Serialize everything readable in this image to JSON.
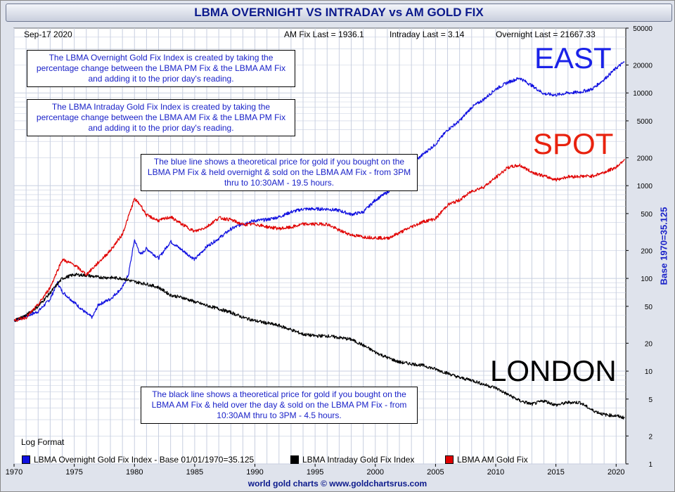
{
  "title": "LBMA OVERNIGHT VS INTRADAY vs AM GOLD FIX",
  "header": {
    "date": "Sep-17  2020",
    "am_fix_last": "AM Fix Last = 1936.1",
    "intraday_last": "Intraday Last = 3.14",
    "overnight_last": "Overnight Last = 21667.33"
  },
  "notes": {
    "overnight": "The LBMA Overnight Gold Fix Index is created by taking the percentage change between the LBMA PM Fix & the LBMA AM Fix and adding it to the prior day's reading.",
    "intraday": "The LBMA Intraday Gold Fix Index is created by taking the percentage change between the LBMA AM Fix & the LBMA PM Fix and adding it to the prior day's reading.",
    "blue_line": "The blue line shows a theoretical price for gold if you bought on the LBMA PM Fix & held overnight & sold on the LBMA AM Fix - from 3PM thru to 10:30AM - 19.5 hours.",
    "black_line": "The black line shows a theoretical price for gold if you bought on the LBMA AM Fix & held over the day & sold on the LBMA PM Fix - from 10:30AM thru to 3PM - 4.5 hours."
  },
  "labels": {
    "east": "EAST",
    "spot": "SPOT",
    "london": "LONDON",
    "log_format": "Log Format",
    "base_axis": "Base 1970=35.125",
    "footer": "world gold charts © www.goldchartsrus.com"
  },
  "legend": [
    {
      "label": "LBMA Overnight Gold Fix Index - Base 01/01/1970=35.125",
      "color": "#1010e0"
    },
    {
      "label": "LBMA Intraday Gold Fix Index",
      "color": "#000000"
    },
    {
      "label": "LBMA AM Gold Fix",
      "color": "#e00000"
    }
  ],
  "colors": {
    "east": "#1a22e8",
    "spot": "#e8220e",
    "london": "#000000",
    "grid": "#c8cfe0"
  },
  "chart_data": {
    "type": "line",
    "yscale": "log",
    "xlim": [
      1970,
      2020.8
    ],
    "ylim": [
      1,
      50000
    ],
    "x_ticks": [
      1970,
      1975,
      1980,
      1985,
      1990,
      1995,
      2000,
      2005,
      2010,
      2015,
      2020
    ],
    "y_ticks": [
      1,
      2,
      5,
      10,
      20,
      50,
      100,
      200,
      500,
      1000,
      2000,
      5000,
      10000,
      20000,
      50000
    ],
    "y_tick_labels": [
      "1",
      "2",
      "5",
      "10",
      "20",
      "50",
      "100",
      "200",
      "500",
      "1000",
      "2000",
      "5000",
      "10000",
      "20000",
      "50000"
    ],
    "series": [
      {
        "name": "LBMA Overnight Gold Fix Index - Base 01/01/1970=35.125",
        "color": "#1010e0",
        "points": [
          [
            1970,
            35.1
          ],
          [
            1971,
            39
          ],
          [
            1972,
            44
          ],
          [
            1973,
            60
          ],
          [
            1973.6,
            90
          ],
          [
            1974,
            72
          ],
          [
            1975,
            55
          ],
          [
            1976,
            42
          ],
          [
            1976.5,
            38
          ],
          [
            1977,
            52
          ],
          [
            1978,
            60
          ],
          [
            1979,
            80
          ],
          [
            1979.5,
            110
          ],
          [
            1980,
            260
          ],
          [
            1980.5,
            180
          ],
          [
            1981,
            210
          ],
          [
            1982,
            165
          ],
          [
            1983,
            250
          ],
          [
            1984,
            200
          ],
          [
            1985,
            160
          ],
          [
            1986,
            220
          ],
          [
            1987,
            270
          ],
          [
            1988,
            340
          ],
          [
            1989,
            390
          ],
          [
            1990,
            420
          ],
          [
            1991,
            430
          ],
          [
            1992,
            460
          ],
          [
            1993,
            520
          ],
          [
            1994,
            560
          ],
          [
            1995,
            560
          ],
          [
            1996,
            560
          ],
          [
            1997,
            540
          ],
          [
            1998,
            490
          ],
          [
            1999,
            520
          ],
          [
            2000,
            700
          ],
          [
            2001,
            850
          ],
          [
            2002,
            1100
          ],
          [
            2003,
            1700
          ],
          [
            2004,
            2200
          ],
          [
            2005,
            2800
          ],
          [
            2006,
            4000
          ],
          [
            2007,
            5000
          ],
          [
            2008,
            7000
          ],
          [
            2009,
            8500
          ],
          [
            2010,
            11000
          ],
          [
            2011,
            13000
          ],
          [
            2012,
            14500
          ],
          [
            2013,
            12000
          ],
          [
            2014,
            9800
          ],
          [
            2015,
            9500
          ],
          [
            2016,
            10000
          ],
          [
            2017,
            10200
          ],
          [
            2018,
            11000
          ],
          [
            2019,
            14000
          ],
          [
            2020,
            18500
          ],
          [
            2020.7,
            21667
          ]
        ]
      },
      {
        "name": "LBMA Intraday Gold Fix Index",
        "color": "#000000",
        "points": [
          [
            1970,
            35.1
          ],
          [
            1971,
            40
          ],
          [
            1972,
            50
          ],
          [
            1973,
            70
          ],
          [
            1974,
            100
          ],
          [
            1975,
            110
          ],
          [
            1976,
            108
          ],
          [
            1977,
            103
          ],
          [
            1978,
            102
          ],
          [
            1979,
            100
          ],
          [
            1980,
            92
          ],
          [
            1981,
            87
          ],
          [
            1982,
            80
          ],
          [
            1983,
            66
          ],
          [
            1984,
            62
          ],
          [
            1985,
            56
          ],
          [
            1986,
            51
          ],
          [
            1987,
            47
          ],
          [
            1988,
            43
          ],
          [
            1989,
            38
          ],
          [
            1990,
            35
          ],
          [
            1991,
            33
          ],
          [
            1992,
            31
          ],
          [
            1993,
            28
          ],
          [
            1994,
            25
          ],
          [
            1995,
            24
          ],
          [
            1996,
            24
          ],
          [
            1997,
            23
          ],
          [
            1998,
            22
          ],
          [
            1999,
            19
          ],
          [
            2000,
            16
          ],
          [
            2001,
            14
          ],
          [
            2002,
            12.5
          ],
          [
            2003,
            12
          ],
          [
            2004,
            11.5
          ],
          [
            2005,
            10.5
          ],
          [
            2006,
            9.5
          ],
          [
            2007,
            8.5
          ],
          [
            2008,
            8
          ],
          [
            2009,
            7.2
          ],
          [
            2010,
            6.6
          ],
          [
            2011,
            5.6
          ],
          [
            2012,
            4.8
          ],
          [
            2013,
            4.4
          ],
          [
            2014,
            4.8
          ],
          [
            2015,
            4.3
          ],
          [
            2016,
            4.6
          ],
          [
            2017,
            4.6
          ],
          [
            2018,
            3.8
          ],
          [
            2019,
            3.4
          ],
          [
            2020,
            3.3
          ],
          [
            2020.7,
            3.14
          ]
        ]
      },
      {
        "name": "LBMA AM Gold Fix",
        "color": "#e00000",
        "points": [
          [
            1970,
            35.1
          ],
          [
            1971,
            38
          ],
          [
            1972,
            52
          ],
          [
            1973,
            80
          ],
          [
            1974,
            160
          ],
          [
            1975,
            140
          ],
          [
            1976,
            110
          ],
          [
            1977,
            148
          ],
          [
            1978,
            200
          ],
          [
            1979,
            300
          ],
          [
            1980,
            720
          ],
          [
            1980.5,
            620
          ],
          [
            1981,
            480
          ],
          [
            1982,
            420
          ],
          [
            1983,
            460
          ],
          [
            1984,
            380
          ],
          [
            1985,
            320
          ],
          [
            1986,
            360
          ],
          [
            1987,
            450
          ],
          [
            1988,
            430
          ],
          [
            1989,
            380
          ],
          [
            1990,
            385
          ],
          [
            1991,
            360
          ],
          [
            1992,
            345
          ],
          [
            1993,
            355
          ],
          [
            1994,
            385
          ],
          [
            1995,
            385
          ],
          [
            1996,
            385
          ],
          [
            1997,
            330
          ],
          [
            1998,
            295
          ],
          [
            1999,
            280
          ],
          [
            2000,
            275
          ],
          [
            2001,
            270
          ],
          [
            2002,
            310
          ],
          [
            2003,
            360
          ],
          [
            2004,
            410
          ],
          [
            2005,
            440
          ],
          [
            2006,
            620
          ],
          [
            2007,
            700
          ],
          [
            2008,
            870
          ],
          [
            2009,
            970
          ],
          [
            2010,
            1220
          ],
          [
            2011,
            1570
          ],
          [
            2012,
            1660
          ],
          [
            2013,
            1400
          ],
          [
            2014,
            1270
          ],
          [
            2015,
            1160
          ],
          [
            2016,
            1250
          ],
          [
            2017,
            1260
          ],
          [
            2018,
            1270
          ],
          [
            2019,
            1390
          ],
          [
            2020,
            1580
          ],
          [
            2020.7,
            1936
          ]
        ]
      }
    ]
  }
}
